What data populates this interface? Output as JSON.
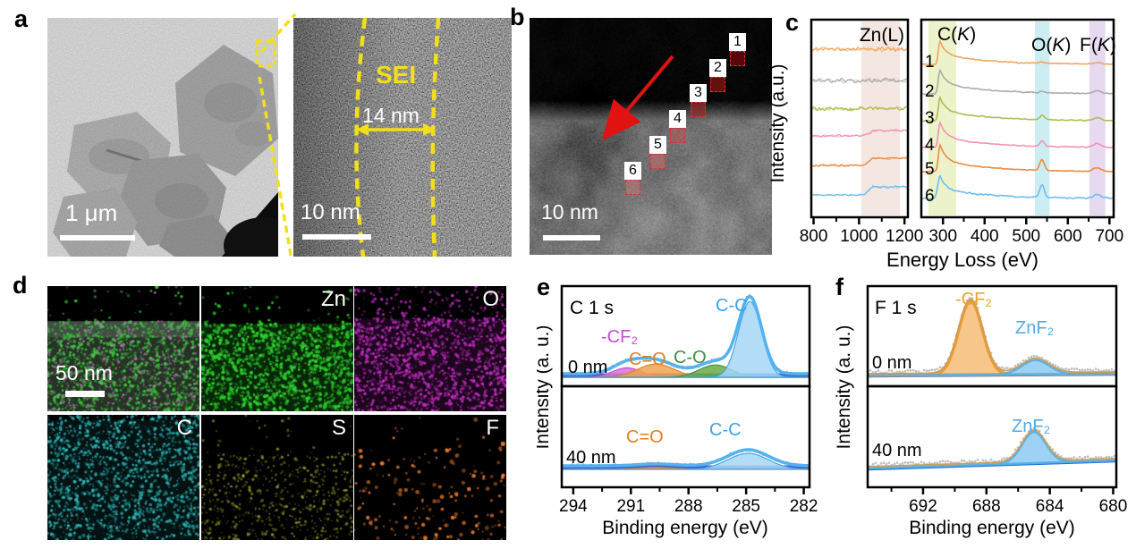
{
  "figure": {
    "panels": {
      "a": {
        "label": "a",
        "tem": {
          "scale_bar": "1 μm"
        },
        "hrtem": {
          "scale_bar": "10 nm",
          "sei_label": "SEI",
          "thickness": "14 nm"
        }
      },
      "b": {
        "label": "b",
        "scale_bar": "10 nm",
        "markers": [
          "1",
          "2",
          "3",
          "4",
          "5",
          "6"
        ],
        "marker_color": "#d42020"
      },
      "c": {
        "label": "c"
      },
      "d": {
        "label": "d",
        "scale_bar": "50 nm",
        "maps": [
          {
            "name": "composite",
            "label": ""
          },
          {
            "name": "zinc",
            "label": "Zn",
            "color": "#2ed32e"
          },
          {
            "name": "oxygen",
            "label": "O",
            "color": "#c32ec3"
          },
          {
            "name": "carbon",
            "label": "C",
            "color": "#2fb5b5"
          },
          {
            "name": "sulfur",
            "label": "S",
            "color": "#a8a832"
          },
          {
            "name": "fluorine",
            "label": "F",
            "color": "#f08030"
          }
        ]
      },
      "e": {
        "label": "e"
      },
      "f": {
        "label": "f"
      }
    }
  },
  "chart_data": [
    {
      "id": "eels-zn-l",
      "type": "line",
      "annotation": "Zn(L)",
      "xlabel": "Energy Loss (eV)",
      "ylabel": "Intensity (a.u.)",
      "xlim": [
        790,
        1215
      ],
      "xticks": [
        800,
        1000,
        1200
      ],
      "highlight_band": {
        "x": [
          1010,
          1180
        ],
        "color": "#f4e7e1"
      },
      "edge_onset": 1020,
      "series": [
        {
          "name": "1",
          "color": "#f0a55e",
          "noise": 6.0,
          "edge_step": 0
        },
        {
          "name": "2",
          "color": "#ababab",
          "noise": 6.0,
          "edge_step": 0
        },
        {
          "name": "3",
          "color": "#b2bb52",
          "noise": 5.5,
          "edge_step": 1
        },
        {
          "name": "4",
          "color": "#f490b2",
          "noise": 3.2,
          "edge_step": 6
        },
        {
          "name": "5",
          "color": "#ec8a40",
          "noise": 3.0,
          "edge_step": 8
        },
        {
          "name": "6",
          "color": "#6dbcf2",
          "noise": 2.8,
          "edge_step": 9
        }
      ]
    },
    {
      "id": "eels-core-loss",
      "type": "line",
      "xlabel": "Energy Loss (eV)",
      "ylabel": "Intensity (a.u.)",
      "xlim": [
        248,
        710
      ],
      "xticks": [
        300,
        400,
        500,
        600,
        700
      ],
      "edges": [
        {
          "label": "C(K)",
          "band": [
            265,
            332
          ],
          "band_color": "#ecf2c9"
        },
        {
          "label": "O(K)",
          "band": [
            521,
            556
          ],
          "band_color": "#cceef2"
        },
        {
          "label": "F(K)",
          "band": [
            652,
            690
          ],
          "band_color": "#e6d9f0"
        }
      ],
      "series": [
        {
          "name": "1",
          "color": "#f0a55e",
          "c_peak": 26,
          "o_peak": 1.5,
          "f_peak": 1.5
        },
        {
          "name": "2",
          "color": "#ababab",
          "c_peak": 27,
          "o_peak": 1.5,
          "f_peak": 3
        },
        {
          "name": "3",
          "color": "#b2bb52",
          "c_peak": 26,
          "o_peak": 5,
          "f_peak": 3
        },
        {
          "name": "4",
          "color": "#f490b2",
          "c_peak": 28,
          "o_peak": 6,
          "f_peak": 4
        },
        {
          "name": "5",
          "color": "#ec8a40",
          "c_peak": 30,
          "o_peak": 12,
          "f_peak": 4
        },
        {
          "name": "6",
          "color": "#6dbcf2",
          "c_peak": 25,
          "o_peak": 14,
          "f_peak": 4
        }
      ]
    },
    {
      "id": "xps-c1s",
      "type": "area",
      "title": "C 1 s",
      "xlabel": "Binding energy (eV)",
      "ylabel": "Intensity (a. u.)",
      "xlim": [
        294.6,
        281.7
      ],
      "xticks": [
        294,
        291,
        288,
        285,
        282
      ],
      "x_reversed": true,
      "subpanels": [
        {
          "depth_label": "0 nm",
          "peaks": [
            {
              "label": "-CF₂",
              "center": 291.2,
              "amp": 0.1,
              "sigma": 0.75,
              "fill": "#d973d9",
              "label_color": "#c44fd0"
            },
            {
              "label": "C=O",
              "center": 289.7,
              "amp": 0.14,
              "sigma": 0.95,
              "fill": "#f0a250",
              "label_color": "#e0801e"
            },
            {
              "label": "C-O",
              "center": 286.6,
              "amp": 0.13,
              "sigma": 0.85,
              "fill": "#6aab46",
              "label_color": "#3f8f3f"
            },
            {
              "label": "C-C",
              "center": 284.8,
              "amp": 0.8,
              "sigma": 0.6,
              "fill": "#a6d7f5",
              "label_color": "#3da2e8"
            }
          ]
        },
        {
          "depth_label": "40 nm",
          "peaks": [
            {
              "label": "C=O",
              "center": 289.7,
              "amp": 0.02,
              "sigma": 1.0,
              "fill": "#f0a250",
              "label_color": "#e0801e"
            },
            {
              "label": "C-C",
              "center": 284.9,
              "amp": 0.17,
              "sigma": 1.05,
              "fill": "#a6d7f5",
              "label_color": "#3da2e8"
            }
          ]
        }
      ]
    },
    {
      "id": "xps-f1s",
      "type": "area",
      "title": "F 1 s",
      "xlabel": "Binding energy (eV)",
      "ylabel": "Intensity (a. u.)",
      "xlim": [
        695.5,
        679.8
      ],
      "xticks": [
        692,
        688,
        684,
        680
      ],
      "x_reversed": true,
      "subpanels": [
        {
          "depth_label": "0 nm",
          "peaks": [
            {
              "label": "-CF₂",
              "center": 689.0,
              "amp": 0.78,
              "sigma": 0.75,
              "fill": "#f6bc76",
              "stroke": "#f59522",
              "label_color": "#efa028"
            },
            {
              "label": "ZnF₂",
              "center": 684.9,
              "amp": 0.15,
              "sigma": 0.85,
              "fill": "#8ccaf2",
              "stroke": "#56b0e8",
              "label_color": "#4fabe8"
            }
          ]
        },
        {
          "depth_label": "40 nm",
          "peaks": [
            {
              "label": "ZnF₂",
              "center": 685.0,
              "amp": 0.33,
              "sigma": 0.75,
              "fill": "#8ccaf2",
              "stroke": "#56b0e8",
              "label_color": "#4fabe8"
            }
          ]
        }
      ]
    }
  ]
}
